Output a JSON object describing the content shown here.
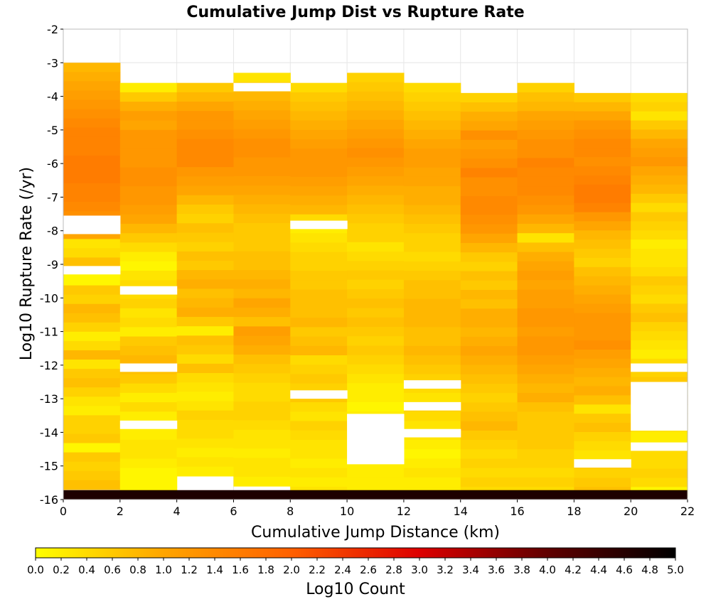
{
  "chart_data": {
    "type": "heatmap",
    "title": "Cumulative Jump Dist vs Rupture Rate",
    "xlabel": "Cumulative Jump Distance (km)",
    "ylabel": "Log10 Rupture Rate (/yr)",
    "xlim": [
      0,
      22
    ],
    "ylim": [
      -16,
      -2
    ],
    "x_ticks": [
      "0",
      "2",
      "4",
      "6",
      "8",
      "10",
      "12",
      "14",
      "16",
      "18",
      "20",
      "22"
    ],
    "y_ticks": [
      "-2",
      "-3",
      "-4",
      "-5",
      "-6",
      "-7",
      "-8",
      "-9",
      "-10",
      "-11",
      "-12",
      "-13",
      "-14",
      "-15",
      "-16"
    ],
    "x_bin_width": 2,
    "y_bin_height": 0.28,
    "grid": true,
    "colorbar": {
      "label": "Log10 Count",
      "range": [
        0,
        5
      ],
      "ticks": [
        "0.0",
        "0.2",
        "0.4",
        "0.6",
        "0.8",
        "1.0",
        "1.2",
        "1.4",
        "1.6",
        "1.8",
        "2.0",
        "2.2",
        "2.4",
        "2.6",
        "2.8",
        "3.0",
        "3.2",
        "3.4",
        "3.6",
        "3.8",
        "4.0",
        "4.2",
        "4.4",
        "4.6",
        "4.8",
        "5.0"
      ],
      "colors": [
        "#ffff00",
        "#ffa500",
        "#ff6000",
        "#dd0000",
        "#600000",
        "#000000"
      ]
    },
    "columns": [
      {
        "x": 0,
        "top": -3.0,
        "bottom": -15.7,
        "values": [
          0.8,
          0.9,
          1.0,
          1.1,
          1.2,
          1.3,
          1.4,
          1.5,
          1.5,
          1.5,
          1.6,
          1.6,
          1.6,
          1.5,
          1.5,
          1.4,
          1.3,
          1.2,
          1.0,
          0.3,
          0.4,
          0.7,
          0.1,
          0.1,
          0.6,
          0.5,
          0.8,
          0.7,
          0.5,
          0.2,
          0.4,
          0.8,
          0.3,
          0.6,
          0.7,
          0.5,
          0.3,
          0.2,
          0.5,
          0.5,
          0.6,
          0.1,
          0.6,
          0.5,
          0.6,
          0.7
        ]
      },
      {
        "x": 2,
        "top": -3.6,
        "bottom": -15.9,
        "values": [
          0.2,
          0.6,
          0.9,
          1.1,
          1.0,
          1.2,
          1.2,
          1.2,
          1.2,
          1.3,
          1.3,
          1.2,
          1.2,
          1.1,
          1.0,
          0.8,
          0.6,
          0.4,
          0.2,
          0.1,
          0.3,
          0.4,
          0.4,
          0.5,
          0.3,
          0.4,
          0.2,
          0.6,
          0.7,
          0.8,
          0.7,
          0.6,
          0.4,
          0.2,
          0.4,
          0.2,
          0.2,
          0.2,
          0.3,
          0.3,
          0.2,
          0.1,
          0.1,
          0.1
        ]
      },
      {
        "x": 4,
        "top": -3.6,
        "bottom": -15.3,
        "values": [
          0.6,
          0.8,
          1.0,
          1.2,
          1.2,
          1.3,
          1.4,
          1.4,
          1.4,
          1.2,
          1.1,
          1.0,
          0.8,
          0.6,
          0.5,
          0.7,
          0.6,
          0.5,
          0.7,
          0.6,
          0.8,
          0.9,
          0.7,
          0.8,
          0.9,
          0.6,
          0.2,
          0.7,
          0.6,
          0.4,
          0.7,
          0.4,
          0.3,
          0.2,
          0.3,
          0.5,
          0.4,
          0.4,
          0.3,
          0.2,
          0.3,
          0.2
        ]
      },
      {
        "x": 6,
        "top": -3.3,
        "bottom": -15.6,
        "values": [
          0.3,
          0.6,
          0.8,
          0.9,
          1.0,
          1.1,
          1.2,
          1.3,
          1.3,
          1.2,
          1.2,
          1.1,
          1.0,
          0.9,
          0.8,
          0.7,
          0.6,
          0.6,
          0.6,
          0.7,
          0.7,
          0.8,
          0.9,
          0.8,
          1.0,
          0.9,
          0.7,
          1.1,
          1.0,
          0.9,
          0.7,
          0.6,
          0.5,
          0.4,
          0.4,
          0.5,
          0.5,
          0.4,
          0.3,
          0.3,
          0.2,
          0.3,
          0.3,
          0.2
        ]
      },
      {
        "x": 8,
        "top": -3.6,
        "bottom": -15.9,
        "values": [
          0.4,
          0.6,
          0.7,
          0.8,
          0.9,
          1.0,
          1.1,
          1.2,
          1.2,
          1.2,
          1.1,
          1.0,
          0.9,
          0.8,
          0.4,
          0.2,
          0.3,
          0.4,
          0.5,
          0.5,
          0.6,
          0.6,
          0.7,
          0.7,
          0.7,
          0.8,
          0.6,
          0.7,
          0.8,
          0.4,
          0.5,
          0.6,
          0.5,
          0.6,
          0.4,
          0.3,
          0.5,
          0.4,
          0.3,
          0.3,
          0.2,
          0.3,
          0.2,
          0.3
        ]
      },
      {
        "x": 10,
        "top": -3.3,
        "bottom": -15.9,
        "values": [
          0.5,
          0.6,
          0.7,
          0.8,
          0.9,
          1.0,
          1.1,
          1.2,
          1.3,
          1.2,
          1.1,
          1.0,
          0.9,
          0.8,
          0.7,
          0.6,
          0.5,
          0.5,
          0.3,
          0.4,
          0.5,
          0.6,
          0.5,
          0.6,
          0.7,
          0.6,
          0.7,
          0.6,
          0.5,
          0.6,
          0.5,
          0.4,
          0.3,
          0.2,
          0.2,
          0.1,
          0.2,
          0.2,
          0.3,
          0.2,
          0.3,
          0.2,
          0.2,
          0.2,
          0.2
        ]
      },
      {
        "x": 12,
        "top": -3.6,
        "bottom": -15.9,
        "values": [
          0.4,
          0.5,
          0.6,
          0.7,
          0.8,
          0.9,
          1.0,
          1.1,
          1.1,
          1.0,
          1.0,
          0.9,
          0.9,
          0.8,
          0.7,
          0.6,
          0.5,
          0.5,
          0.4,
          0.5,
          0.6,
          0.7,
          0.7,
          0.8,
          0.8,
          0.8,
          0.7,
          0.7,
          0.8,
          0.7,
          0.6,
          0.5,
          0.4,
          0.3,
          0.5,
          0.4,
          0.3,
          0.3,
          0.2,
          0.1,
          0.2,
          0.3,
          0.2,
          0.2
        ]
      },
      {
        "x": 14,
        "top": -3.9,
        "bottom": -15.9,
        "values": [
          0.5,
          0.7,
          0.9,
          1.0,
          1.3,
          1.1,
          1.2,
          1.3,
          1.5,
          1.3,
          1.3,
          1.4,
          1.4,
          1.3,
          1.2,
          1.0,
          0.8,
          0.6,
          0.5,
          0.7,
          0.6,
          0.8,
          0.7,
          0.9,
          0.9,
          0.8,
          0.9,
          1.0,
          0.9,
          0.8,
          0.7,
          0.6,
          0.5,
          0.6,
          0.7,
          0.8,
          0.6,
          0.5,
          0.4,
          0.5,
          0.4,
          0.5,
          0.4
        ]
      },
      {
        "x": 16,
        "top": -3.6,
        "bottom": -15.9,
        "values": [
          0.5,
          0.7,
          0.8,
          1.0,
          1.1,
          1.2,
          1.3,
          1.3,
          1.5,
          1.4,
          1.4,
          1.4,
          1.3,
          1.2,
          1.0,
          0.8,
          0.3,
          0.7,
          0.9,
          1.0,
          1.1,
          1.0,
          1.1,
          1.1,
          1.2,
          1.2,
          1.1,
          1.2,
          1.2,
          1.1,
          1.0,
          0.9,
          0.8,
          0.9,
          0.7,
          0.6,
          0.6,
          0.6,
          0.6,
          0.5,
          0.5,
          0.4,
          0.5,
          0.4
        ]
      },
      {
        "x": 18,
        "top": -3.9,
        "bottom": -15.9,
        "values": [
          0.6,
          0.8,
          1.0,
          1.2,
          1.3,
          1.4,
          1.4,
          1.3,
          1.4,
          1.5,
          1.6,
          1.6,
          1.5,
          1.2,
          1.0,
          0.8,
          0.7,
          0.6,
          0.5,
          0.7,
          0.8,
          0.9,
          1.0,
          1.1,
          1.2,
          1.2,
          1.2,
          1.3,
          1.1,
          1.0,
          0.9,
          0.8,
          0.9,
          0.7,
          0.3,
          0.6,
          0.7,
          0.5,
          0.4,
          0.3,
          0.6,
          0.5,
          0.6,
          0.7
        ]
      },
      {
        "x": 20,
        "top": -3.9,
        "bottom": -15.9,
        "values": [
          0.4,
          0.5,
          0.3,
          0.6,
          0.8,
          1.0,
          1.1,
          1.2,
          1.0,
          0.9,
          0.8,
          0.6,
          0.4,
          0.6,
          0.5,
          0.4,
          0.2,
          0.3,
          0.3,
          0.4,
          0.6,
          0.5,
          0.4,
          0.6,
          0.7,
          0.5,
          0.4,
          0.3,
          0.2,
          0.4,
          0.5,
          0.6,
          0.2,
          0.6,
          0.5,
          0.4,
          0.3,
          0.2,
          0.2,
          0.4,
          0.4,
          0.5,
          0.4,
          0.1
        ]
      }
    ],
    "empty_cells": [
      {
        "x": 0,
        "from": -8.1,
        "to": -7.55
      },
      {
        "x": 0,
        "from": -9.3,
        "to": -9.05
      },
      {
        "x": 2,
        "from": -9.9,
        "to": -9.65
      },
      {
        "x": 2,
        "from": -12.2,
        "to": -11.95
      },
      {
        "x": 2,
        "from": -13.9,
        "to": -13.65
      },
      {
        "x": 6,
        "from": -3.85,
        "to": -3.6
      },
      {
        "x": 8,
        "from": -7.95,
        "to": -7.7
      },
      {
        "x": 8,
        "from": -13.0,
        "to": -12.75
      },
      {
        "x": 10,
        "from": -14.95,
        "to": -13.45
      },
      {
        "x": 12,
        "from": -12.7,
        "to": -12.45
      },
      {
        "x": 12,
        "from": -13.35,
        "to": -13.1
      },
      {
        "x": 12,
        "from": -14.15,
        "to": -13.9
      },
      {
        "x": 18,
        "from": -15.05,
        "to": -14.8
      },
      {
        "x": 20,
        "from": -12.2,
        "to": -11.95
      },
      {
        "x": 20,
        "from": -13.95,
        "to": -12.5
      },
      {
        "x": 20,
        "from": -14.55,
        "to": -14.3
      }
    ],
    "bottom_row": {
      "y": -15.85,
      "value": 4.7
    }
  }
}
